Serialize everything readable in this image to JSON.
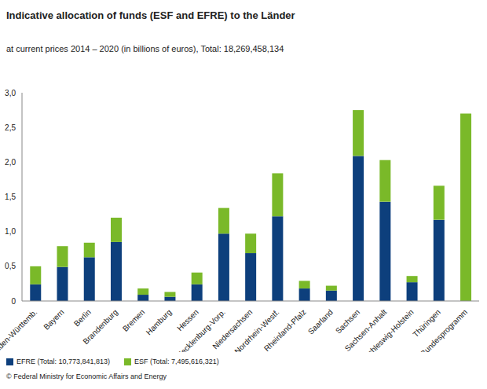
{
  "chart_data": {
    "type": "bar",
    "title": "Indicative allocation of funds (ESF and EFRE) to the Länder",
    "subtitle": "at current prices 2014 – 2020 (in billions of euros), Total: 18,269,458,134",
    "annotations": [
      "© Federal Ministry for Economic Affairs and Energy"
    ],
    "categories": [
      "Baden-Württemb.",
      "Bayern",
      "Berlin",
      "Brandenburg",
      "Bremen",
      "Hamburg",
      "Hessen",
      "Mecklenburg-Vorp.",
      "Niedersachsen",
      "Nordrhein-Westf.",
      "Rheinland-Pfalz",
      "Saarland",
      "Sachsen",
      "Sachsen-Anhalt",
      "Schleswig-Holstein",
      "Thüringen",
      "Bundesprogramm"
    ],
    "series": [
      {
        "name": "EFRE (Total: 10,773,841,813)",
        "color": "#0d3f7c",
        "values": [
          0.24,
          0.49,
          0.63,
          0.85,
          0.09,
          0.06,
          0.24,
          0.97,
          0.69,
          1.22,
          0.18,
          0.15,
          2.09,
          1.43,
          0.27,
          1.17,
          0
        ]
      },
      {
        "name": "ESF (Total: 7,495,616,321)",
        "color": "#7ab929",
        "values": [
          0.26,
          0.3,
          0.21,
          0.35,
          0.09,
          0.07,
          0.17,
          0.37,
          0.28,
          0.62,
          0.11,
          0.07,
          0.66,
          0.6,
          0.09,
          0.49,
          2.7
        ]
      }
    ],
    "ylim": [
      0,
      3
    ],
    "yticks": [
      0,
      {
        "value": 0.5,
        "label": "0,5"
      },
      {
        "value": 1,
        "label": "1,0"
      },
      {
        "value": 1.5,
        "label": "1,5"
      },
      {
        "value": 2,
        "label": "2,0"
      },
      {
        "value": 2.5,
        "label": "2,5"
      },
      {
        "value": 3,
        "label": "3,0"
      }
    ],
    "stacked": true,
    "grid": false,
    "legend": "bottom"
  }
}
